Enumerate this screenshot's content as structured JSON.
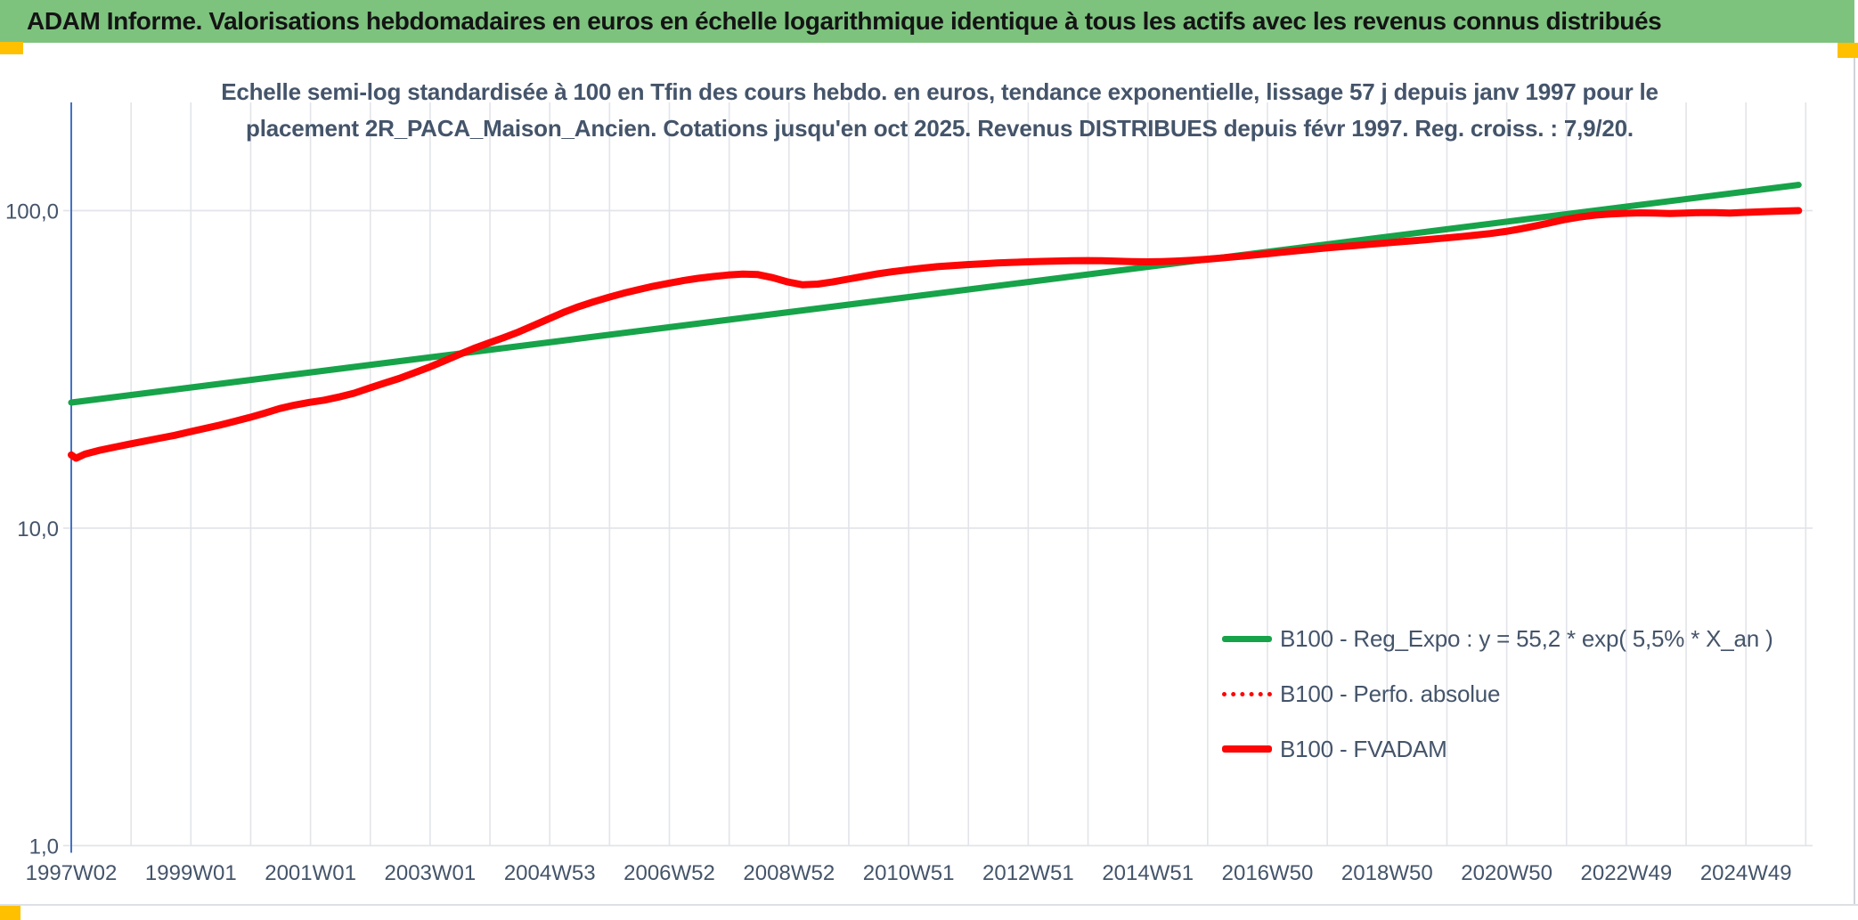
{
  "header": {
    "title": "ADAM Informe. Valorisations hebdomadaires en euros en échelle logarithmique identique à tous les actifs avec les revenus connus distribués",
    "bg_color": "#7DC37E",
    "accent_color": "#FFC000",
    "text_color": "#141414"
  },
  "chart_data": {
    "type": "line",
    "y_scale": "log",
    "title_lines": [
      "Echelle semi-log standardisée à 100 en Tfin des cours hebdo. en euros, tendance exponentielle, lissage 57 j depuis janv 1997 pour le",
      "placement 2R_PACA_Maison_Ancien. Cotations jusqu'en oct 2025. Revenus DISTRIBUES depuis févr 1997. Reg. croiss. : 7,9/20."
    ],
    "title_color": "#44546A",
    "axis_text_color": "#44546A",
    "axis_line_color": "#4472C4",
    "grid_color": "#E2E4E9",
    "y_ticks": [
      {
        "label": "100,0",
        "value": 100
      },
      {
        "label": "10,0",
        "value": 10
      },
      {
        "label": "1,0",
        "value": 1
      }
    ],
    "x_ticks": [
      "1997W02",
      "1999W01",
      "2001W01",
      "2003W01",
      "2004W53",
      "2006W52",
      "2008W52",
      "2010W51",
      "2012W51",
      "2014W51",
      "2016W50",
      "2018W50",
      "2020W50",
      "2022W49",
      "2024W49"
    ],
    "x_range_years": [
      1997.02,
      2025.9
    ],
    "ylim": [
      1,
      219
    ],
    "grid": {
      "vertical_every_years": 1,
      "horizontal_at": [
        100,
        10
      ]
    },
    "legend_position": "inside-lower-right",
    "series": [
      {
        "name": "B100 - Reg_Expo : y = 55,2 * exp( 5,5% *  X_an )",
        "color": "#17A349",
        "style": "solid",
        "width": 7,
        "points": [
          [
            1997.02,
            24.86
          ],
          [
            2025.9,
            120.5
          ]
        ]
      },
      {
        "name": "B100 - Perfo. absolue",
        "color": "#FD0505",
        "style": "dotted",
        "width": 5,
        "points": "B100 - FVADAM"
      },
      {
        "name": "B100 - FVADAM",
        "color": "#FD0505",
        "style": "solid",
        "width": 8,
        "points": [
          [
            1997.02,
            17.0
          ],
          [
            1997.1,
            16.6
          ],
          [
            1997.25,
            17.1
          ],
          [
            1997.5,
            17.6
          ],
          [
            1997.75,
            18.0
          ],
          [
            1998.0,
            18.4
          ],
          [
            1998.25,
            18.8
          ],
          [
            1998.5,
            19.2
          ],
          [
            1998.75,
            19.6
          ],
          [
            1999.0,
            20.1
          ],
          [
            1999.25,
            20.6
          ],
          [
            1999.5,
            21.1
          ],
          [
            1999.75,
            21.7
          ],
          [
            2000.0,
            22.3
          ],
          [
            2000.25,
            23.0
          ],
          [
            2000.5,
            23.8
          ],
          [
            2000.75,
            24.4
          ],
          [
            2001.0,
            24.9
          ],
          [
            2001.25,
            25.3
          ],
          [
            2001.5,
            25.9
          ],
          [
            2001.75,
            26.6
          ],
          [
            2002.0,
            27.6
          ],
          [
            2002.25,
            28.6
          ],
          [
            2002.5,
            29.6
          ],
          [
            2002.75,
            30.8
          ],
          [
            2003.0,
            32.1
          ],
          [
            2003.25,
            33.6
          ],
          [
            2003.5,
            35.2
          ],
          [
            2003.75,
            36.8
          ],
          [
            2004.0,
            38.3
          ],
          [
            2004.25,
            39.8
          ],
          [
            2004.5,
            41.5
          ],
          [
            2004.75,
            43.5
          ],
          [
            2005.0,
            45.6
          ],
          [
            2005.25,
            47.8
          ],
          [
            2005.5,
            49.8
          ],
          [
            2005.75,
            51.6
          ],
          [
            2006.0,
            53.3
          ],
          [
            2006.25,
            54.9
          ],
          [
            2006.5,
            56.4
          ],
          [
            2006.75,
            57.8
          ],
          [
            2007.0,
            59.0
          ],
          [
            2007.25,
            60.2
          ],
          [
            2007.5,
            61.2
          ],
          [
            2007.75,
            62.0
          ],
          [
            2008.0,
            62.7
          ],
          [
            2008.25,
            63.1
          ],
          [
            2008.5,
            62.9
          ],
          [
            2008.75,
            61.5
          ],
          [
            2009.0,
            59.6
          ],
          [
            2009.25,
            58.4
          ],
          [
            2009.5,
            58.7
          ],
          [
            2009.75,
            59.6
          ],
          [
            2010.0,
            60.8
          ],
          [
            2010.25,
            62.0
          ],
          [
            2010.5,
            63.2
          ],
          [
            2010.75,
            64.2
          ],
          [
            2011.0,
            65.1
          ],
          [
            2011.25,
            65.9
          ],
          [
            2011.5,
            66.6
          ],
          [
            2011.75,
            67.1
          ],
          [
            2012.0,
            67.6
          ],
          [
            2012.25,
            68.0
          ],
          [
            2012.5,
            68.4
          ],
          [
            2012.75,
            68.7
          ],
          [
            2013.0,
            69.0
          ],
          [
            2013.25,
            69.2
          ],
          [
            2013.5,
            69.4
          ],
          [
            2013.75,
            69.5
          ],
          [
            2014.0,
            69.6
          ],
          [
            2014.25,
            69.5
          ],
          [
            2014.5,
            69.3
          ],
          [
            2014.75,
            69.1
          ],
          [
            2015.0,
            69.0
          ],
          [
            2015.25,
            69.1
          ],
          [
            2015.5,
            69.4
          ],
          [
            2015.75,
            69.8
          ],
          [
            2016.0,
            70.3
          ],
          [
            2016.25,
            70.9
          ],
          [
            2016.5,
            71.6
          ],
          [
            2016.75,
            72.3
          ],
          [
            2017.0,
            73.1
          ],
          [
            2017.25,
            73.9
          ],
          [
            2017.5,
            74.7
          ],
          [
            2017.75,
            75.5
          ],
          [
            2018.0,
            76.3
          ],
          [
            2018.25,
            77.0
          ],
          [
            2018.5,
            77.7
          ],
          [
            2018.75,
            78.4
          ],
          [
            2019.0,
            79.1
          ],
          [
            2019.25,
            79.8
          ],
          [
            2019.5,
            80.5
          ],
          [
            2019.75,
            81.2
          ],
          [
            2020.0,
            82.0
          ],
          [
            2020.25,
            82.8
          ],
          [
            2020.5,
            83.7
          ],
          [
            2020.75,
            84.7
          ],
          [
            2021.0,
            86.0
          ],
          [
            2021.25,
            87.6
          ],
          [
            2021.5,
            89.5
          ],
          [
            2021.75,
            91.6
          ],
          [
            2022.0,
            93.8
          ],
          [
            2022.25,
            95.5
          ],
          [
            2022.5,
            96.8
          ],
          [
            2022.75,
            97.6
          ],
          [
            2023.0,
            98.1
          ],
          [
            2023.25,
            98.4
          ],
          [
            2023.5,
            98.2
          ],
          [
            2023.75,
            97.9
          ],
          [
            2024.0,
            98.2
          ],
          [
            2024.25,
            98.6
          ],
          [
            2024.5,
            98.5
          ],
          [
            2024.75,
            98.3
          ],
          [
            2025.0,
            98.7
          ],
          [
            2025.25,
            99.1
          ],
          [
            2025.5,
            99.5
          ],
          [
            2025.9,
            100.0
          ]
        ]
      }
    ]
  },
  "footer": {
    "accent_color": "#FFC000"
  }
}
